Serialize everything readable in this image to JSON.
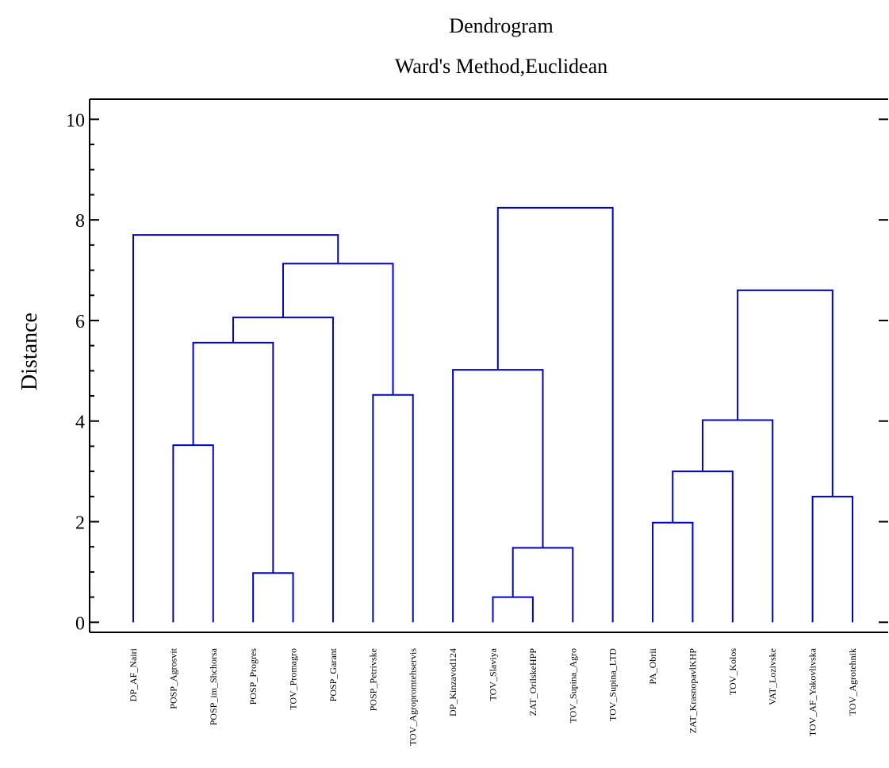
{
  "chart_data": {
    "type": "dendrogram",
    "title": "Dendrogram",
    "subtitle": "Ward's Method,Euclidean",
    "ylabel": "Distance",
    "ylim": [
      -0.2,
      10.4
    ],
    "y_ticks": [
      0,
      2,
      4,
      6,
      8,
      10
    ],
    "line_color": "#0000cc",
    "axis_color": "#000000",
    "leaves": [
      "DP_AF_Nairi",
      "POSP_Agrosvit",
      "POSP_im_Shchorsa",
      "POSP_Progres",
      "TOV_Promagro",
      "POSP_Garant",
      "POSP_Petrivske",
      "TOV_Agropromtehservis",
      "DP_Kinzavod124",
      "TOV_Slaviya",
      "ZAT_OrilskeHPP",
      "TOV_Supina_Agro",
      "TOV_Supina_LTD",
      "PA_Obrii",
      "ZAT_KrasnopavlKHP",
      "TOV_Kolos",
      "VAT_Lozivske",
      "TOV_AF_Yakovlivska",
      "TOV_Agrotehnik"
    ],
    "merges": [
      {
        "id": "m1",
        "left": "POSP_Progres",
        "right": "TOV_Promagro",
        "height": 0.98
      },
      {
        "id": "m2",
        "left": "TOV_Slaviya",
        "right": "ZAT_OrilskeHPP",
        "height": 0.5
      },
      {
        "id": "m3",
        "left": "m2",
        "right": "TOV_Supina_Agro",
        "height": 1.48
      },
      {
        "id": "m4",
        "left": "PA_Obrii",
        "right": "ZAT_KrasnopavlKHP",
        "height": 1.98
      },
      {
        "id": "m5",
        "left": "TOV_AF_Yakovlivska",
        "right": "TOV_Agrotehnik",
        "height": 2.5
      },
      {
        "id": "m6",
        "left": "m4",
        "right": "TOV_Kolos",
        "height": 3.0
      },
      {
        "id": "m7",
        "left": "POSP_Agrosvit",
        "right": "POSP_im_Shchorsa",
        "height": 3.52
      },
      {
        "id": "m8",
        "left": "m6",
        "right": "VAT_Lozivske",
        "height": 4.02
      },
      {
        "id": "m9",
        "left": "POSP_Petrivske",
        "right": "TOV_Agropromtehservis",
        "height": 4.52
      },
      {
        "id": "m10",
        "left": "DP_Kinzavod124",
        "right": "m3",
        "height": 5.02
      },
      {
        "id": "m11",
        "left": "m7",
        "right": "m1",
        "height": 5.56
      },
      {
        "id": "m12",
        "left": "m11",
        "right": "POSP_Garant",
        "height": 6.06
      },
      {
        "id": "m13",
        "left": "m8",
        "right": "m5",
        "height": 6.6
      },
      {
        "id": "m14",
        "left": "m12",
        "right": "m9",
        "height": 7.13
      },
      {
        "id": "m15",
        "left": "DP_AF_Nairi",
        "right": "m14",
        "height": 7.7
      },
      {
        "id": "m16",
        "left": "m10",
        "right": "TOV_Supina_LTD",
        "height": 8.24
      }
    ]
  }
}
